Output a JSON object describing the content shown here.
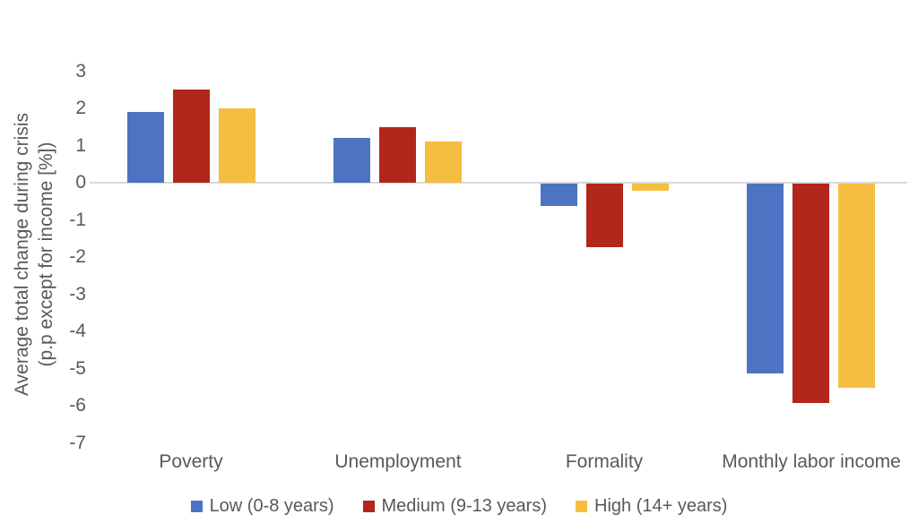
{
  "chart_data": {
    "type": "bar",
    "title": "",
    "ylabel_line1": "Average total change during crisis",
    "ylabel_line2": "(p.p except for income [%])",
    "categories": [
      "Poverty",
      "Unemployment",
      "Formality",
      "Monthly labor income"
    ],
    "series": [
      {
        "name": "Low (0-8 years)",
        "color": "#4D74C2",
        "values": [
          1.9,
          1.2,
          -0.6,
          -5.1
        ]
      },
      {
        "name": "Medium (9-13 years)",
        "color": "#B2261B",
        "values": [
          2.5,
          1.5,
          -1.7,
          -5.9
        ]
      },
      {
        "name": "High (14+ years)",
        "color": "#F5BE41",
        "values": [
          2.0,
          1.1,
          -0.2,
          -5.5
        ]
      }
    ],
    "ylim": [
      -7,
      3
    ],
    "yticks": [
      3,
      2,
      1,
      0,
      -1,
      -2,
      -3,
      -4,
      -5,
      -6,
      -7
    ],
    "grid": false,
    "legend_position": "bottom",
    "axis_line_color": "#d9d9d9",
    "text_color": "#595959"
  }
}
